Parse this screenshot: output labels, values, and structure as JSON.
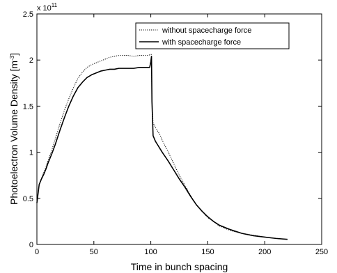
{
  "chart_data": {
    "type": "line",
    "xlabel": "Time in bunch spacing",
    "ylabel": "Photoelectron Volume Density [m",
    "ylabel_sup": "-3",
    "ylabel_close": "]",
    "y_exponent_base": "x 10",
    "y_exponent_power": "11",
    "xlim": [
      0,
      250
    ],
    "ylim": [
      0,
      2.5
    ],
    "x_ticks": [
      0,
      50,
      100,
      150,
      200,
      250
    ],
    "y_ticks": [
      0,
      0.5,
      1,
      1.5,
      2,
      2.5
    ],
    "x_tick_labels": [
      "0",
      "50",
      "100",
      "150",
      "200",
      "250"
    ],
    "y_tick_labels": [
      "0",
      "0.5",
      "1",
      "1.5",
      "2",
      "2.5"
    ],
    "grid": false,
    "legend_position": "top-right",
    "series": [
      {
        "name": "without spacecharge force",
        "style": "dotted",
        "color": "#000000",
        "points": [
          [
            0,
            0.45
          ],
          [
            1,
            0.55
          ],
          [
            2,
            0.65
          ],
          [
            4,
            0.72
          ],
          [
            6,
            0.78
          ],
          [
            8,
            0.84
          ],
          [
            10,
            0.92
          ],
          [
            13,
            1.02
          ],
          [
            16,
            1.14
          ],
          [
            20,
            1.3
          ],
          [
            24,
            1.45
          ],
          [
            28,
            1.58
          ],
          [
            32,
            1.7
          ],
          [
            36,
            1.8
          ],
          [
            40,
            1.87
          ],
          [
            44,
            1.92
          ],
          [
            48,
            1.95
          ],
          [
            52,
            1.97
          ],
          [
            56,
            1.99
          ],
          [
            60,
            2.01
          ],
          [
            64,
            2.03
          ],
          [
            68,
            2.04
          ],
          [
            72,
            2.05
          ],
          [
            76,
            2.05
          ],
          [
            80,
            2.05
          ],
          [
            85,
            2.04
          ],
          [
            90,
            2.05
          ],
          [
            95,
            2.05
          ],
          [
            98,
            2.05
          ],
          [
            99.5,
            2.06
          ],
          [
            100.5,
            2.06
          ],
          [
            101,
            1.55
          ],
          [
            102,
            1.32
          ],
          [
            104,
            1.27
          ],
          [
            106,
            1.23
          ],
          [
            108,
            1.19
          ],
          [
            110,
            1.13
          ],
          [
            115,
            1.01
          ],
          [
            120,
            0.88
          ],
          [
            125,
            0.75
          ],
          [
            130,
            0.64
          ],
          [
            135,
            0.53
          ],
          [
            140,
            0.43
          ],
          [
            145,
            0.36
          ],
          [
            150,
            0.29
          ],
          [
            155,
            0.25
          ],
          [
            160,
            0.2
          ],
          [
            170,
            0.15
          ],
          [
            180,
            0.12
          ],
          [
            190,
            0.1
          ],
          [
            200,
            0.08
          ],
          [
            210,
            0.065
          ],
          [
            220,
            0.055
          ]
        ]
      },
      {
        "name": "with spacecharge force",
        "style": "solid",
        "color": "#000000",
        "points": [
          [
            0,
            0.45
          ],
          [
            1,
            0.55
          ],
          [
            2,
            0.65
          ],
          [
            4,
            0.71
          ],
          [
            6,
            0.76
          ],
          [
            8,
            0.82
          ],
          [
            10,
            0.89
          ],
          [
            13,
            0.98
          ],
          [
            16,
            1.08
          ],
          [
            20,
            1.23
          ],
          [
            24,
            1.37
          ],
          [
            28,
            1.5
          ],
          [
            32,
            1.61
          ],
          [
            36,
            1.7
          ],
          [
            40,
            1.76
          ],
          [
            44,
            1.81
          ],
          [
            48,
            1.84
          ],
          [
            52,
            1.86
          ],
          [
            56,
            1.88
          ],
          [
            60,
            1.89
          ],
          [
            64,
            1.9
          ],
          [
            68,
            1.9
          ],
          [
            72,
            1.91
          ],
          [
            76,
            1.91
          ],
          [
            80,
            1.91
          ],
          [
            85,
            1.91
          ],
          [
            90,
            1.92
          ],
          [
            95,
            1.92
          ],
          [
            99,
            1.92
          ],
          [
            100,
            1.98
          ],
          [
            100.6,
            2.04
          ],
          [
            101,
            1.55
          ],
          [
            102,
            1.18
          ],
          [
            104,
            1.12
          ],
          [
            106,
            1.08
          ],
          [
            108,
            1.04
          ],
          [
            110,
            1.0
          ],
          [
            115,
            0.91
          ],
          [
            120,
            0.81
          ],
          [
            125,
            0.71
          ],
          [
            130,
            0.62
          ],
          [
            135,
            0.52
          ],
          [
            140,
            0.43
          ],
          [
            145,
            0.36
          ],
          [
            150,
            0.3
          ],
          [
            155,
            0.25
          ],
          [
            160,
            0.21
          ],
          [
            170,
            0.16
          ],
          [
            180,
            0.12
          ],
          [
            190,
            0.095
          ],
          [
            200,
            0.08
          ],
          [
            210,
            0.065
          ],
          [
            220,
            0.055
          ]
        ]
      }
    ]
  }
}
